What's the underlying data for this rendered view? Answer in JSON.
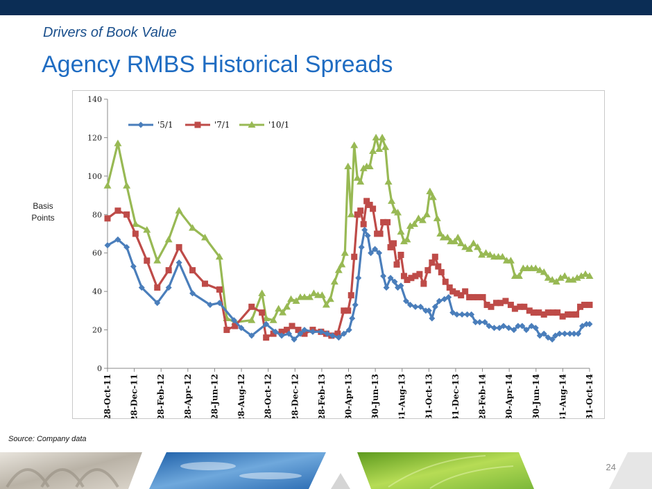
{
  "slide": {
    "subtitle": "Drivers of Book Value",
    "title": "Agency RMBS Historical Spreads",
    "source": "Source: Company data",
    "page_number": "24"
  },
  "colors": {
    "series_5_1": "#4a7ebb",
    "series_7_1": "#be4b48",
    "series_10_1": "#98b954",
    "title": "#1f6cc2",
    "top_bar": "#0b2d55"
  },
  "chart_data": {
    "type": "line",
    "ylabel": "Basis Points",
    "ylim": [
      0,
      140
    ],
    "yticks": [
      0,
      20,
      40,
      60,
      80,
      100,
      120,
      140
    ],
    "grid": false,
    "legend_position": "top-left",
    "x_tick_labels": [
      "28-Oct-11",
      "28-Dec-11",
      "28-Feb-12",
      "28-Apr-12",
      "28-Jun-12",
      "28-Aug-12",
      "28-Oct-12",
      "28-Dec-12",
      "28-Feb-13",
      "30-Apr-13",
      "30-Jun-13",
      "31-Aug-13",
      "31-Oct-13",
      "31-Dec-13",
      "28-Feb-14",
      "30-Apr-14",
      "30-Jun-14",
      "31-Aug-14",
      "31-Oct-14"
    ],
    "series": [
      {
        "name": "'5/1",
        "color": "#4a7ebb",
        "marker": "diamond",
        "points": [
          [
            0,
            64
          ],
          [
            1,
            67
          ],
          [
            1.85,
            63
          ],
          [
            2.5,
            53
          ],
          [
            3.3,
            42
          ],
          [
            4.8,
            34
          ],
          [
            5.9,
            42
          ],
          [
            6.9,
            55
          ],
          [
            8.2,
            39
          ],
          [
            9.9,
            33
          ],
          [
            10.8,
            34
          ],
          [
            12.2,
            25
          ],
          [
            12.9,
            21
          ],
          [
            13.9,
            17
          ],
          [
            15.3,
            23
          ],
          [
            16.2,
            19
          ],
          [
            16.8,
            17
          ],
          [
            17.5,
            18
          ],
          [
            18,
            15
          ],
          [
            18.6,
            18
          ],
          [
            19,
            20
          ],
          [
            19.8,
            19
          ],
          [
            20.6,
            19
          ],
          [
            21.2,
            18
          ],
          [
            21.7,
            17
          ],
          [
            22.3,
            16
          ],
          [
            22.8,
            18
          ],
          [
            23.3,
            20
          ],
          [
            23.6,
            26
          ],
          [
            23.9,
            33
          ],
          [
            24.2,
            47
          ],
          [
            24.5,
            63
          ],
          [
            24.8,
            72
          ],
          [
            25.1,
            69
          ],
          [
            25.4,
            60
          ],
          [
            25.8,
            62
          ],
          [
            26.2,
            60
          ],
          [
            26.6,
            48
          ],
          [
            26.9,
            42
          ],
          [
            27.3,
            47
          ],
          [
            27.7,
            45
          ],
          [
            28,
            42
          ],
          [
            28.3,
            43
          ],
          [
            28.8,
            35
          ],
          [
            29.2,
            33
          ],
          [
            29.7,
            32
          ],
          [
            30.2,
            32
          ],
          [
            30.7,
            30
          ],
          [
            31,
            30
          ],
          [
            31.3,
            26
          ],
          [
            31.6,
            32
          ],
          [
            32,
            35
          ],
          [
            32.5,
            36
          ],
          [
            32.9,
            37
          ],
          [
            33.3,
            29
          ],
          [
            33.7,
            28
          ],
          [
            34.2,
            28
          ],
          [
            34.7,
            28
          ],
          [
            35.1,
            28
          ],
          [
            35.5,
            24
          ],
          [
            35.9,
            24
          ],
          [
            36.4,
            24
          ],
          [
            36.8,
            22
          ],
          [
            37.3,
            21
          ],
          [
            37.8,
            21
          ],
          [
            38.2,
            22
          ],
          [
            38.7,
            21
          ],
          [
            39.2,
            20
          ],
          [
            39.6,
            22
          ],
          [
            40,
            22
          ],
          [
            40.4,
            20
          ],
          [
            40.9,
            22
          ],
          [
            41.3,
            21
          ],
          [
            41.7,
            17
          ],
          [
            42.1,
            18
          ],
          [
            42.5,
            16
          ],
          [
            42.9,
            15
          ],
          [
            43.2,
            17
          ],
          [
            43.6,
            18
          ],
          [
            44.1,
            18
          ],
          [
            44.6,
            18
          ],
          [
            45,
            18
          ],
          [
            45.4,
            18
          ],
          [
            45.8,
            22
          ],
          [
            46.2,
            23
          ],
          [
            46.5,
            23
          ]
        ]
      },
      {
        "name": "'7/1",
        "color": "#be4b48",
        "marker": "square",
        "points": [
          [
            0,
            78
          ],
          [
            1,
            82
          ],
          [
            1.85,
            80
          ],
          [
            2.7,
            70
          ],
          [
            3.8,
            56
          ],
          [
            4.8,
            42
          ],
          [
            5.9,
            51
          ],
          [
            6.9,
            63
          ],
          [
            8.2,
            51
          ],
          [
            9.4,
            44
          ],
          [
            10.8,
            41
          ],
          [
            11.5,
            20
          ],
          [
            12.3,
            22
          ],
          [
            13.9,
            32
          ],
          [
            14.9,
            29
          ],
          [
            15.3,
            16
          ],
          [
            16,
            18
          ],
          [
            16.8,
            19
          ],
          [
            17.3,
            20
          ],
          [
            17.8,
            22
          ],
          [
            18.4,
            20
          ],
          [
            19,
            18
          ],
          [
            19.8,
            20
          ],
          [
            20.6,
            19
          ],
          [
            21.1,
            18
          ],
          [
            21.6,
            17
          ],
          [
            22.2,
            18
          ],
          [
            22.8,
            30
          ],
          [
            23.2,
            30
          ],
          [
            23.5,
            38
          ],
          [
            23.8,
            58
          ],
          [
            24.1,
            80
          ],
          [
            24.4,
            82
          ],
          [
            24.7,
            75
          ],
          [
            25,
            87
          ],
          [
            25.3,
            85
          ],
          [
            25.6,
            83
          ],
          [
            26,
            70
          ],
          [
            26.3,
            70
          ],
          [
            26.6,
            76
          ],
          [
            27,
            76
          ],
          [
            27.3,
            63
          ],
          [
            27.6,
            65
          ],
          [
            27.9,
            54
          ],
          [
            28.3,
            59
          ],
          [
            28.6,
            48
          ],
          [
            28.9,
            46
          ],
          [
            29.3,
            47
          ],
          [
            29.7,
            48
          ],
          [
            30.1,
            49
          ],
          [
            30.5,
            44
          ],
          [
            30.9,
            51
          ],
          [
            31.3,
            55
          ],
          [
            31.6,
            58
          ],
          [
            31.9,
            53
          ],
          [
            32.2,
            50
          ],
          [
            32.6,
            45
          ],
          [
            33,
            42
          ],
          [
            33.3,
            40
          ],
          [
            33.7,
            39
          ],
          [
            34.1,
            38
          ],
          [
            34.5,
            40
          ],
          [
            34.9,
            37
          ],
          [
            35.3,
            37
          ],
          [
            35.7,
            37
          ],
          [
            36.2,
            37
          ],
          [
            36.6,
            33
          ],
          [
            37,
            32
          ],
          [
            37.5,
            34
          ],
          [
            37.9,
            34
          ],
          [
            38.4,
            35
          ],
          [
            38.9,
            33
          ],
          [
            39.3,
            31
          ],
          [
            39.8,
            32
          ],
          [
            40.2,
            32
          ],
          [
            40.7,
            30
          ],
          [
            41.1,
            29
          ],
          [
            41.6,
            29
          ],
          [
            42.1,
            28
          ],
          [
            42.5,
            29
          ],
          [
            43,
            29
          ],
          [
            43.4,
            29
          ],
          [
            43.9,
            27
          ],
          [
            44.4,
            28
          ],
          [
            44.8,
            28
          ],
          [
            45.2,
            28
          ],
          [
            45.6,
            32
          ],
          [
            46,
            33
          ],
          [
            46.5,
            33
          ]
        ]
      },
      {
        "name": "'10/1",
        "color": "#98b954",
        "marker": "triangle",
        "points": [
          [
            0,
            95
          ],
          [
            1,
            117
          ],
          [
            1.85,
            95
          ],
          [
            2.7,
            75
          ],
          [
            3.8,
            72
          ],
          [
            4.8,
            56
          ],
          [
            5.9,
            67
          ],
          [
            6.9,
            82
          ],
          [
            8.2,
            73
          ],
          [
            9.4,
            68
          ],
          [
            10.8,
            58
          ],
          [
            11.5,
            26
          ],
          [
            12.3,
            24
          ],
          [
            13.9,
            25
          ],
          [
            14.9,
            39
          ],
          [
            15.3,
            26
          ],
          [
            16,
            25
          ],
          [
            16.5,
            31
          ],
          [
            16.9,
            29
          ],
          [
            17.3,
            32
          ],
          [
            17.7,
            36
          ],
          [
            18.2,
            35
          ],
          [
            18.6,
            37
          ],
          [
            19,
            37
          ],
          [
            19.5,
            37
          ],
          [
            19.9,
            39
          ],
          [
            20.3,
            38
          ],
          [
            20.7,
            38
          ],
          [
            21.1,
            33
          ],
          [
            21.5,
            36
          ],
          [
            21.9,
            45
          ],
          [
            22.3,
            51
          ],
          [
            22.6,
            54
          ],
          [
            22.9,
            60
          ],
          [
            23.2,
            105
          ],
          [
            23.5,
            80
          ],
          [
            23.8,
            116
          ],
          [
            24.1,
            99
          ],
          [
            24.4,
            97
          ],
          [
            24.7,
            104
          ],
          [
            25,
            105
          ],
          [
            25.3,
            105
          ],
          [
            25.6,
            113
          ],
          [
            25.9,
            120
          ],
          [
            26.2,
            114
          ],
          [
            26.5,
            120
          ],
          [
            26.8,
            115
          ],
          [
            27.1,
            97
          ],
          [
            27.4,
            87
          ],
          [
            27.7,
            82
          ],
          [
            28,
            81
          ],
          [
            28.3,
            71
          ],
          [
            28.6,
            66
          ],
          [
            28.9,
            67
          ],
          [
            29.2,
            74
          ],
          [
            29.6,
            75
          ],
          [
            30,
            78
          ],
          [
            30.4,
            77
          ],
          [
            30.8,
            80
          ],
          [
            31.1,
            92
          ],
          [
            31.4,
            89
          ],
          [
            31.8,
            78
          ],
          [
            32.1,
            70
          ],
          [
            32.4,
            68
          ],
          [
            32.8,
            68
          ],
          [
            33.1,
            66
          ],
          [
            33.5,
            66
          ],
          [
            33.8,
            68
          ],
          [
            34.1,
            65
          ],
          [
            34.5,
            63
          ],
          [
            34.9,
            62
          ],
          [
            35.3,
            65
          ],
          [
            35.7,
            63
          ],
          [
            36.1,
            59
          ],
          [
            36.5,
            60
          ],
          [
            36.9,
            59
          ],
          [
            37.3,
            58
          ],
          [
            37.7,
            58
          ],
          [
            38.1,
            58
          ],
          [
            38.5,
            56
          ],
          [
            38.9,
            56
          ],
          [
            39.3,
            48
          ],
          [
            39.7,
            48
          ],
          [
            40.1,
            52
          ],
          [
            40.5,
            52
          ],
          [
            40.9,
            52
          ],
          [
            41.3,
            52
          ],
          [
            41.7,
            51
          ],
          [
            42.1,
            50
          ],
          [
            42.5,
            47
          ],
          [
            42.9,
            46
          ],
          [
            43.3,
            45
          ],
          [
            43.7,
            47
          ],
          [
            44.1,
            48
          ],
          [
            44.5,
            46
          ],
          [
            44.9,
            46
          ],
          [
            45.3,
            47
          ],
          [
            45.7,
            48
          ],
          [
            46.1,
            49
          ],
          [
            46.5,
            48
          ]
        ]
      }
    ]
  }
}
